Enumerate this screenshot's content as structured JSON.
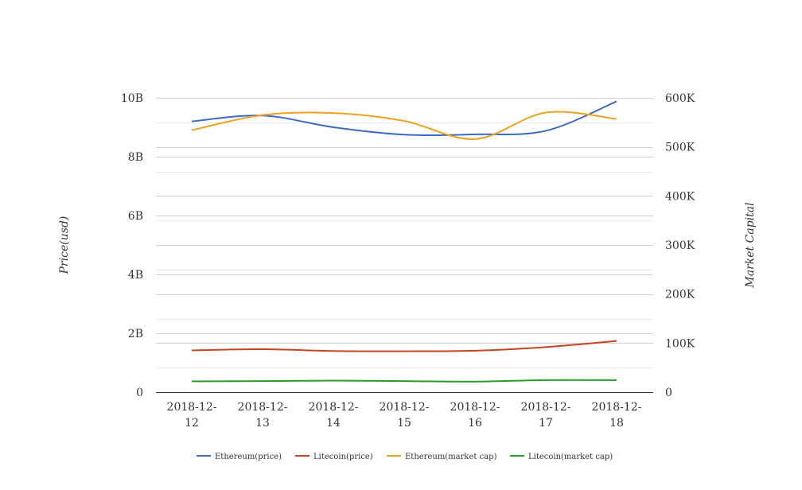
{
  "chart_data": {
    "type": "line",
    "categories": [
      "2018-12-12",
      "2018-12-13",
      "2018-12-14",
      "2018-12-15",
      "2018-12-16",
      "2018-12-17",
      "2018-12-18"
    ],
    "category_label_lines": [
      [
        "2018-12-",
        "12"
      ],
      [
        "2018-12-",
        "13"
      ],
      [
        "2018-12-",
        "14"
      ],
      [
        "2018-12-",
        "15"
      ],
      [
        "2018-12-",
        "16"
      ],
      [
        "2018-12-",
        "17"
      ],
      [
        "2018-12-",
        "18"
      ]
    ],
    "y_left": {
      "label": "Price(usd)",
      "range": [
        0,
        10000000000
      ],
      "ticks": [
        0,
        2000000000,
        4000000000,
        6000000000,
        8000000000,
        10000000000
      ],
      "tick_labels": [
        "0",
        "2B",
        "4B",
        "6B",
        "8B",
        "10B"
      ]
    },
    "y_right": {
      "label": "Market Capital",
      "range": [
        0,
        600000
      ],
      "ticks": [
        0,
        100000,
        200000,
        300000,
        400000,
        500000,
        600000
      ],
      "tick_labels": [
        "0",
        "100K",
        "200K",
        "300K",
        "400K",
        "500K",
        "600K"
      ]
    },
    "grid": true,
    "legend_position": "bottom",
    "series": [
      {
        "name": "Ethereum(price)",
        "axis": "left",
        "color": "#3a6bc4",
        "values": [
          9200000000,
          9400000000,
          9000000000,
          8750000000,
          8760000000,
          8880000000,
          9880000000
        ]
      },
      {
        "name": "Litecoin(price)",
        "axis": "left",
        "color": "#c8431e",
        "values": [
          1420000000,
          1460000000,
          1400000000,
          1390000000,
          1410000000,
          1530000000,
          1740000000
        ]
      },
      {
        "name": "Ethereum(market cap)",
        "axis": "right",
        "color": "#f0a020",
        "values": [
          534000,
          565000,
          569000,
          553000,
          516000,
          570000,
          557000
        ]
      },
      {
        "name": "Litecoin(market cap)",
        "axis": "right",
        "color": "#2a9a2a",
        "values": [
          22000,
          22500,
          23500,
          22500,
          21500,
          24500,
          24500
        ]
      }
    ]
  }
}
